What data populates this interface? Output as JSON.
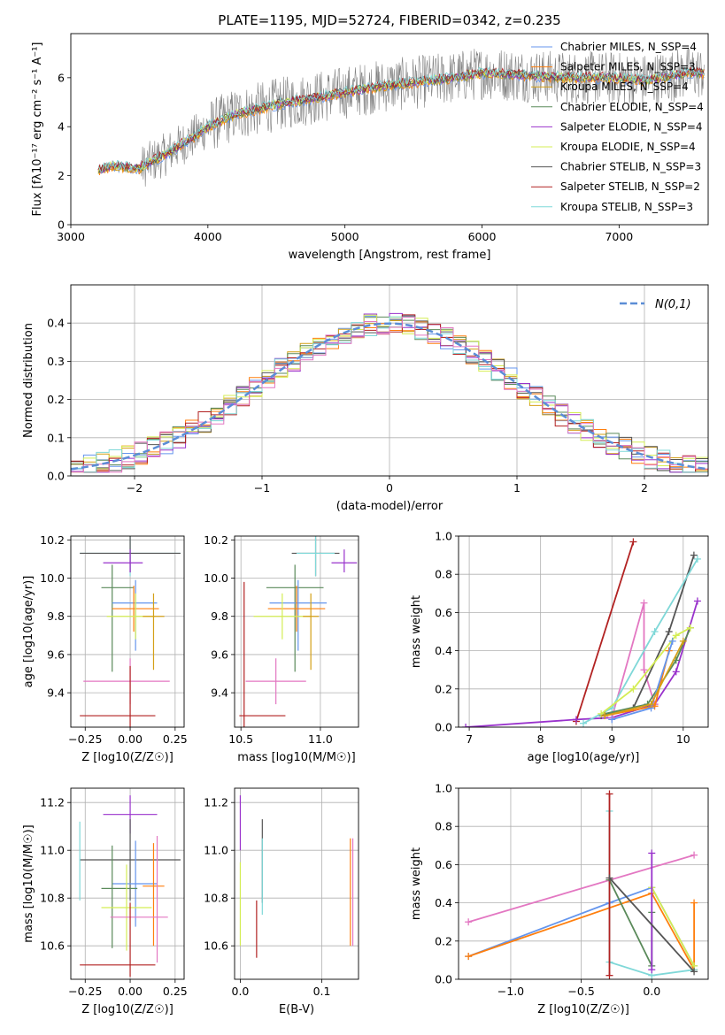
{
  "chart_data": [
    {
      "id": "spectrum",
      "type": "line",
      "title": "PLATE=1195, MJD=52724, FIBERID=0342, z=0.235",
      "xlabel": "wavelength [Angstrom, rest frame]",
      "ylabel": "Flux [fλ10⁻¹⁷ erg cm⁻² s⁻¹ A⁻¹]",
      "xlim": [
        3000,
        7650
      ],
      "ylim": [
        0,
        7.8
      ],
      "xticks": [
        3000,
        4000,
        5000,
        6000,
        7000
      ],
      "yticks": [
        0,
        2,
        4,
        6
      ],
      "grid": false,
      "legend_position": "top-right",
      "observed_envelope": {
        "x": [
          3200,
          3300,
          3500,
          3700,
          3900,
          4000,
          4200,
          4500,
          4800,
          5000,
          5200,
          5500,
          5800,
          6000,
          6300,
          6600,
          6900,
          7200,
          7500
        ],
        "y": [
          2.2,
          2.4,
          2.3,
          2.9,
          3.6,
          4.0,
          4.5,
          4.9,
          5.2,
          5.4,
          5.6,
          5.8,
          6.0,
          6.2,
          6.1,
          6.0,
          6.0,
          5.9,
          6.2
        ]
      },
      "series": [
        {
          "name": "Chabrier MILES, N_SSP=4",
          "color": "#6495ed"
        },
        {
          "name": "Salpeter MILES, N_SSP=3",
          "color": "#ff7f0e"
        },
        {
          "name": "Kroupa MILES, N_SSP=4",
          "color": "#d4a017"
        },
        {
          "name": "Chabrier ELODIE, N_SSP=4",
          "color": "#5a8a5a"
        },
        {
          "name": "Salpeter ELODIE, N_SSP=4",
          "color": "#9932cc"
        },
        {
          "name": "Kroupa ELODIE, N_SSP=4",
          "color": "#d4ed54"
        },
        {
          "name": "Chabrier STELIB, N_SSP=3",
          "color": "#555555"
        },
        {
          "name": "Salpeter STELIB, N_SSP=2",
          "color": "#b22222"
        },
        {
          "name": "Kroupa STELIB, N_SSP=3",
          "color": "#7fd8d8"
        }
      ]
    },
    {
      "id": "residuals",
      "type": "line",
      "xlabel": "(data-model)/error",
      "ylabel": "Normed distribution",
      "xlim": [
        -2.5,
        2.5
      ],
      "ylim": [
        0,
        0.5
      ],
      "xticks": [
        -2,
        -1,
        0,
        1,
        2
      ],
      "yticks": [
        0.0,
        0.1,
        0.2,
        0.3,
        0.4
      ],
      "grid": true,
      "legend_position": "top-right",
      "gaussian_label": "N(0,1)",
      "gaussian_color": "#5b8dd6",
      "bin_edges_start": -2.5,
      "bin_width": 0.1,
      "histogram_colors": [
        "#6495ed",
        "#ff7f0e",
        "#d4a017",
        "#5a8a5a",
        "#9932cc",
        "#d4ed54",
        "#555555",
        "#b22222",
        "#7fd8d8",
        "#e377c2"
      ]
    },
    {
      "id": "age-vs-Z",
      "type": "scatter",
      "xlabel": "Z [log10(Z/Z☉)]",
      "ylabel": "age [log10(age/yr)]",
      "xlim": [
        -0.33,
        0.3
      ],
      "ylim": [
        9.22,
        10.22
      ],
      "xticks": [
        -0.25,
        0.0,
        0.25
      ],
      "yticks": [
        9.4,
        9.6,
        9.8,
        10.0,
        10.2
      ],
      "grid": true,
      "points": [
        {
          "x": 0.0,
          "y": 10.13,
          "xerr": [
            0.28,
            0.28
          ],
          "yerr": [
            0.12,
            0.12
          ],
          "color": "#7fd8d8"
        },
        {
          "x": 0.0,
          "y": 10.13,
          "xerr": [
            0.28,
            0.28
          ],
          "yerr": [
            0.1,
            0.1
          ],
          "color": "#555555"
        },
        {
          "x": 0.0,
          "y": 10.08,
          "xerr": [
            0.15,
            0.07
          ],
          "yerr": [
            0.05,
            0.07
          ],
          "color": "#9932cc"
        },
        {
          "x": -0.1,
          "y": 9.95,
          "xerr": [
            0.06,
            0.12
          ],
          "yerr": [
            0.44,
            0.12
          ],
          "color": "#5a8a5a"
        },
        {
          "x": 0.03,
          "y": 9.87,
          "xerr": [
            0.13,
            0.12
          ],
          "yerr": [
            0.25,
            0.12
          ],
          "color": "#6495ed"
        },
        {
          "x": 0.02,
          "y": 9.84,
          "xerr": [
            0.12,
            0.14
          ],
          "yerr": [
            0.12,
            0.12
          ],
          "color": "#ff7f0e"
        },
        {
          "x": 0.03,
          "y": 9.8,
          "xerr": [
            0.16,
            0.11
          ],
          "yerr": [
            0.12,
            0.12
          ],
          "color": "#d4ed54"
        },
        {
          "x": 0.13,
          "y": 9.8,
          "xerr": [
            0.06,
            0.06
          ],
          "yerr": [
            0.28,
            0.12
          ],
          "color": "#d4a017"
        },
        {
          "x": 0.0,
          "y": 9.46,
          "xerr": [
            0.26,
            0.22
          ],
          "yerr": [
            0.12,
            0.12
          ],
          "color": "#e377c2"
        },
        {
          "x": 0.0,
          "y": 9.28,
          "xerr": [
            0.28,
            0.14
          ],
          "yerr": [
            0.1,
            0.26
          ],
          "color": "#b22222"
        }
      ]
    },
    {
      "id": "age-vs-mass",
      "type": "scatter",
      "xlabel": "mass [log10(M/M☉)]",
      "ylabel": "",
      "xlim": [
        10.46,
        11.24
      ],
      "ylim": [
        9.22,
        10.22
      ],
      "xticks": [
        10.5,
        11.0
      ],
      "yticks": [
        9.4,
        9.6,
        9.8,
        10.0,
        10.2
      ],
      "grid": true,
      "points": [
        {
          "x": 10.97,
          "y": 10.13,
          "xerr": [
            0.15,
            0.15
          ],
          "yerr": [
            0.12,
            0.12
          ],
          "color": "#555555"
        },
        {
          "x": 10.97,
          "y": 10.13,
          "xerr": [
            0.12,
            0.12
          ],
          "yerr": [
            0.12,
            0.12
          ],
          "color": "#7fd8d8"
        },
        {
          "x": 11.15,
          "y": 10.08,
          "xerr": [
            0.08,
            0.08
          ],
          "yerr": [
            0.05,
            0.07
          ],
          "color": "#9932cc"
        },
        {
          "x": 10.84,
          "y": 9.95,
          "xerr": [
            0.18,
            0.18
          ],
          "yerr": [
            0.44,
            0.12
          ],
          "color": "#5a8a5a"
        },
        {
          "x": 10.86,
          "y": 9.87,
          "xerr": [
            0.18,
            0.18
          ],
          "yerr": [
            0.25,
            0.12
          ],
          "color": "#6495ed"
        },
        {
          "x": 10.85,
          "y": 9.84,
          "xerr": [
            0.18,
            0.18
          ],
          "yerr": [
            0.12,
            0.12
          ],
          "color": "#ff7f0e"
        },
        {
          "x": 10.76,
          "y": 9.8,
          "xerr": [
            0.18,
            0.18
          ],
          "yerr": [
            0.12,
            0.12
          ],
          "color": "#d4ed54"
        },
        {
          "x": 10.94,
          "y": 9.8,
          "xerr": [
            0.05,
            0.05
          ],
          "yerr": [
            0.28,
            0.12
          ],
          "color": "#d4a017"
        },
        {
          "x": 10.72,
          "y": 9.46,
          "xerr": [
            0.19,
            0.19
          ],
          "yerr": [
            0.12,
            0.12
          ],
          "color": "#e377c2"
        },
        {
          "x": 10.52,
          "y": 9.28,
          "xerr": [
            0.03,
            0.26
          ],
          "yerr": [
            0.1,
            0.7
          ],
          "color": "#b22222"
        }
      ]
    },
    {
      "id": "mass-weight-vs-age",
      "type": "line",
      "xlabel": "age [log10(age/yr)]",
      "ylabel": "mass weight",
      "xlim": [
        6.85,
        10.35
      ],
      "ylim": [
        0,
        1
      ],
      "xticks": [
        7,
        8,
        9,
        10
      ],
      "yticks": [
        0.0,
        0.2,
        0.4,
        0.6,
        0.8,
        1.0
      ],
      "grid": true,
      "series": [
        {
          "color": "#b22222",
          "x": [
            8.5,
            9.3
          ],
          "y": [
            0.03,
            0.97
          ]
        },
        {
          "color": "#9932cc",
          "x": [
            6.95,
            8.5,
            9.0,
            9.6,
            9.9,
            10.2
          ],
          "y": [
            0.0,
            0.04,
            0.05,
            0.12,
            0.29,
            0.66
          ]
        },
        {
          "color": "#e377c2",
          "x": [
            9.0,
            9.45,
            9.45,
            9.6
          ],
          "y": [
            0.05,
            0.65,
            0.3,
            0.12
          ]
        },
        {
          "color": "#555555",
          "x": [
            8.85,
            9.3,
            9.8,
            10.15
          ],
          "y": [
            0.06,
            0.1,
            0.5,
            0.9
          ]
        },
        {
          "color": "#7fd8d8",
          "x": [
            8.6,
            9.0,
            9.6,
            10.2
          ],
          "y": [
            0.02,
            0.1,
            0.5,
            0.88
          ]
        },
        {
          "color": "#5a8a5a",
          "x": [
            8.9,
            9.5,
            9.9,
            10.1
          ],
          "y": [
            0.07,
            0.12,
            0.35,
            0.52
          ]
        },
        {
          "color": "#d4ed54",
          "x": [
            8.85,
            9.3,
            9.9,
            10.1
          ],
          "y": [
            0.07,
            0.2,
            0.48,
            0.52
          ]
        },
        {
          "color": "#ff7f0e",
          "x": [
            8.9,
            9.6,
            9.8
          ],
          "y": [
            0.06,
            0.11,
            0.4
          ]
        },
        {
          "color": "#6495ed",
          "x": [
            9.0,
            9.55,
            9.85
          ],
          "y": [
            0.04,
            0.1,
            0.45
          ]
        },
        {
          "color": "#d4a017",
          "x": [
            8.9,
            9.55,
            10.0
          ],
          "y": [
            0.06,
            0.12,
            0.45
          ]
        }
      ]
    },
    {
      "id": "mass-vs-Z",
      "type": "scatter",
      "xlabel": "Z [log10(Z/Z☉)]",
      "ylabel": "mass [log10(M/M☉)]",
      "xlim": [
        -0.33,
        0.3
      ],
      "ylim": [
        10.46,
        11.26
      ],
      "xticks": [
        -0.25,
        0.0,
        0.25
      ],
      "yticks": [
        10.6,
        10.8,
        11.0,
        11.2
      ],
      "grid": true,
      "points": [
        {
          "x": 0.0,
          "y": 11.15,
          "xerr": [
            0.15,
            0.15
          ],
          "yerr": [
            0.08,
            0.08
          ],
          "color": "#9932cc"
        },
        {
          "x": 0.0,
          "y": 10.96,
          "xerr": [
            0.28,
            0.28
          ],
          "yerr": [
            0.17,
            0.17
          ],
          "color": "#555555"
        },
        {
          "x": -0.28,
          "y": 10.97,
          "xerr": [
            0.0,
            0.0
          ],
          "yerr": [
            0.18,
            0.15
          ],
          "color": "#7fd8d8"
        },
        {
          "x": 0.03,
          "y": 10.86,
          "xerr": [
            0.13,
            0.12
          ],
          "yerr": [
            0.18,
            0.18
          ],
          "color": "#6495ed"
        },
        {
          "x": -0.1,
          "y": 10.84,
          "xerr": [
            0.06,
            0.14
          ],
          "yerr": [
            0.25,
            0.18
          ],
          "color": "#5a8a5a"
        },
        {
          "x": 0.13,
          "y": 10.85,
          "xerr": [
            0.06,
            0.06
          ],
          "yerr": [
            0.25,
            0.18
          ],
          "color": "#ff7f0e"
        },
        {
          "x": -0.02,
          "y": 10.76,
          "xerr": [
            0.14,
            0.14
          ],
          "yerr": [
            0.18,
            0.18
          ],
          "color": "#d4ed54"
        },
        {
          "x": 0.15,
          "y": 10.72,
          "xerr": [
            0.26,
            0.06
          ],
          "yerr": [
            0.19,
            0.34
          ],
          "color": "#e377c2"
        },
        {
          "x": 0.0,
          "y": 10.52,
          "xerr": [
            0.28,
            0.14
          ],
          "yerr": [
            0.05,
            0.26
          ],
          "color": "#b22222"
        }
      ]
    },
    {
      "id": "mass-vs-ebv",
      "type": "scatter",
      "xlabel": "E(B-V)",
      "ylabel": "",
      "xlim": [
        -0.007,
        0.145
      ],
      "ylim": [
        10.46,
        11.26
      ],
      "xticks": [
        0.0,
        0.1
      ],
      "yticks": [
        10.6,
        10.8,
        11.0,
        11.2
      ],
      "grid": true,
      "points": [
        {
          "x": 0.0,
          "y": 11.15,
          "xerr": [
            0,
            0
          ],
          "yerr": [
            0.15,
            0.08
          ],
          "color": "#9932cc"
        },
        {
          "x": 0.0,
          "y": 10.75,
          "xerr": [
            0,
            0
          ],
          "yerr": [
            0.15,
            0.2
          ],
          "color": "#d4ed54"
        },
        {
          "x": 0.02,
          "y": 10.65,
          "xerr": [
            0,
            0
          ],
          "yerr": [
            0.1,
            0.14
          ],
          "color": "#b22222"
        },
        {
          "x": 0.027,
          "y": 10.98,
          "xerr": [
            0,
            0
          ],
          "yerr": [
            0.2,
            0.15
          ],
          "color": "#555555"
        },
        {
          "x": 0.027,
          "y": 10.95,
          "xerr": [
            0,
            0
          ],
          "yerr": [
            0.22,
            0.1
          ],
          "color": "#7fd8d8"
        },
        {
          "x": 0.135,
          "y": 10.85,
          "xerr": [
            0,
            0
          ],
          "yerr": [
            0.25,
            0.2
          ],
          "color": "#ff7f0e"
        },
        {
          "x": 0.138,
          "y": 10.8,
          "xerr": [
            0,
            0
          ],
          "yerr": [
            0.2,
            0.25
          ],
          "color": "#e377c2"
        }
      ]
    },
    {
      "id": "mass-weight-vs-Z",
      "type": "line",
      "xlabel": "Z [log10(Z/Z☉)]",
      "ylabel": "mass weight",
      "xlim": [
        -1.37,
        0.4
      ],
      "ylim": [
        0,
        1
      ],
      "xticks": [
        -1.0,
        -0.5,
        0.0
      ],
      "yticks": [
        0.0,
        0.2,
        0.4,
        0.6,
        0.8,
        1.0
      ],
      "grid": true,
      "series": [
        {
          "color": "#e377c2",
          "x": [
            -1.3,
            0.3
          ],
          "y": [
            0.3,
            0.65
          ]
        },
        {
          "color": "#6495ed",
          "x": [
            -1.3,
            -0.3,
            0.0,
            0.3
          ],
          "y": [
            0.12,
            0.4,
            0.48,
            0.07
          ]
        },
        {
          "color": "#ff7f0e",
          "x": [
            -1.3,
            0.0,
            0.3,
            0.3
          ],
          "y": [
            0.12,
            0.45,
            0.05,
            0.4
          ]
        },
        {
          "color": "#7fd8d8",
          "x": [
            -0.3,
            -0.3,
            0.0,
            0.3
          ],
          "y": [
            0.88,
            0.09,
            0.02,
            0.05
          ]
        },
        {
          "color": "#5a8a5a",
          "x": [
            -0.3,
            0.0,
            0.0
          ],
          "y": [
            0.52,
            0.07,
            0.35
          ]
        },
        {
          "color": "#d4ed54",
          "x": [
            0.0,
            0.3
          ],
          "y": [
            0.48,
            0.07
          ]
        },
        {
          "color": "#b22222",
          "x": [
            -0.3,
            -0.3
          ],
          "y": [
            0.02,
            0.97
          ]
        },
        {
          "color": "#9932cc",
          "x": [
            0.0,
            0.0
          ],
          "y": [
            0.66,
            0.05
          ]
        },
        {
          "color": "#555555",
          "x": [
            -0.3,
            0.3
          ],
          "y": [
            0.53,
            0.04
          ]
        }
      ]
    }
  ]
}
